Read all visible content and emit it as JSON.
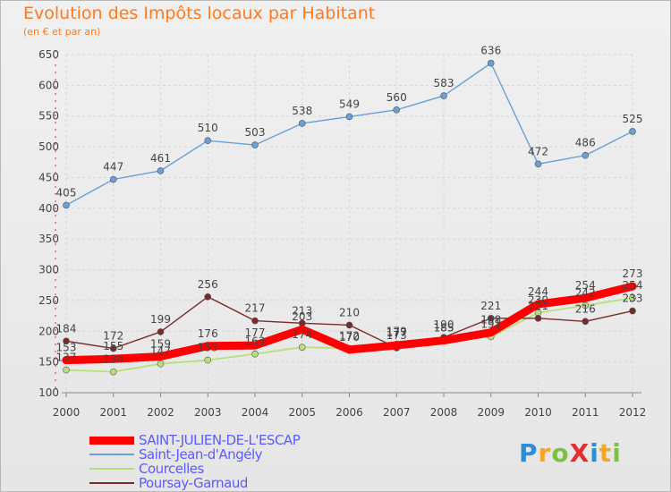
{
  "title": "Evolution des Impôts locaux par Habitant",
  "subtitle": "(en € et par an)",
  "logo": {
    "text": "ProXiti",
    "letters": [
      "P",
      "r",
      "o",
      "X",
      "i",
      "t",
      "i"
    ],
    "colors": [
      "#2a8fd8",
      "#f5a623",
      "#7cc242",
      "#e03030",
      "#2a8fd8",
      "#f5a623",
      "#7cc242"
    ]
  },
  "chart_data": {
    "type": "line",
    "x": [
      "2000",
      "2001",
      "2002",
      "2003",
      "2004",
      "2005",
      "2006",
      "2007",
      "2008",
      "2009",
      "2010",
      "2011",
      "2012"
    ],
    "ylim": [
      100,
      650
    ],
    "yticks": [
      100,
      150,
      200,
      250,
      300,
      350,
      400,
      450,
      500,
      550,
      600,
      650
    ],
    "grid": true,
    "legend_position": "bottom-left",
    "series": [
      {
        "name": "SAINT-JULIEN-DE-L'ESCAP",
        "color": "#ff0000",
        "values": [
          153,
          155,
          159,
          176,
          177,
          203,
          170,
          177,
          185,
          198,
          244,
          254,
          273
        ],
        "labels": [
          "153",
          "155",
          "159",
          "176",
          "177",
          "203",
          "170",
          "177",
          "185",
          "198",
          "244",
          "254",
          "273"
        ]
      },
      {
        "name": "Saint-Jean-d'Angély",
        "color": "#6a9fd8",
        "values": [
          405,
          447,
          461,
          510,
          503,
          538,
          549,
          560,
          583,
          636,
          472,
          486,
          525
        ],
        "labels": [
          "405",
          "447",
          "461",
          "510",
          "503",
          "538",
          "549",
          "560",
          "583",
          "636",
          "472",
          "486",
          "525"
        ]
      },
      {
        "name": "Courcelles",
        "color": "#b8e07a",
        "values": [
          137,
          134,
          147,
          153,
          163,
          174,
          172,
          179,
          185,
          191,
          230,
          242,
          254
        ],
        "labels": [
          "137",
          "134",
          "147",
          "153",
          "163",
          "174",
          "172",
          "179",
          "185",
          "191",
          "230",
          "242",
          "254"
        ]
      },
      {
        "name": "Poursay-Garnaud",
        "color": "#7a2a2a",
        "values": [
          184,
          172,
          199,
          256,
          217,
          213,
          210,
          173,
          190,
          221,
          221,
          216,
          233
        ],
        "labels": [
          "184",
          "172",
          "199",
          "256",
          "217",
          "213",
          "210",
          "173",
          "190",
          "221",
          "221",
          "216",
          "233"
        ]
      }
    ]
  }
}
